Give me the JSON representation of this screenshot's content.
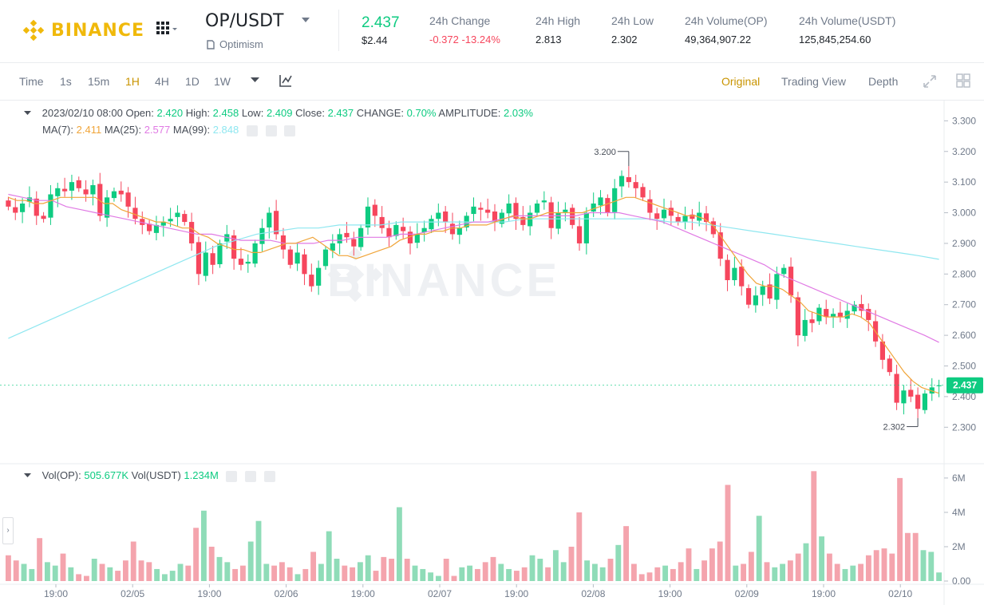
{
  "header": {
    "brand": "BINANCE",
    "pair": "OP/USDT",
    "pair_subtitle": "Optimism",
    "last_price": "2.437",
    "last_price_usd": "$2.44",
    "stats": [
      {
        "label": "24h Change",
        "value": "-0.372 -13.24%",
        "negative": true
      },
      {
        "label": "24h High",
        "value": "2.813",
        "negative": false
      },
      {
        "label": "24h Low",
        "value": "2.302",
        "negative": false
      },
      {
        "label": "24h Volume(OP)",
        "value": "49,364,907.22",
        "negative": false
      },
      {
        "label": "24h Volume(USDT)",
        "value": "125,845,254.60",
        "negative": false
      }
    ]
  },
  "toolbar": {
    "timeframes": [
      "Time",
      "1s",
      "15m",
      "1H",
      "4H",
      "1D",
      "1W"
    ],
    "active_timeframe": "1H",
    "views": [
      "Original",
      "Trading View",
      "Depth"
    ],
    "active_view": "Original"
  },
  "legend": {
    "ohlc_date": "2023/02/10 08:00",
    "open_label": "Open:",
    "open": "2.420",
    "high_label": "High:",
    "high": "2.458",
    "low_label": "Low:",
    "low": "2.409",
    "close_label": "Close:",
    "close": "2.437",
    "change_label": "CHANGE:",
    "change": "0.70%",
    "amplitude_label": "AMPLITUDE:",
    "amplitude": "2.03%",
    "ma7_label": "MA(7):",
    "ma7": "2.411",
    "ma25_label": "MA(25):",
    "ma25": "2.577",
    "ma99_label": "MA(99):",
    "ma99": "2.848",
    "vol_op_label": "Vol(OP):",
    "vol_op": "505.677K",
    "vol_usdt_label": "Vol(USDT)",
    "vol_usdt": "1.234M"
  },
  "watermark": "BINANCE",
  "colors": {
    "up": "#0ecb81",
    "down": "#f6465d",
    "accent": "#f0b90b",
    "ma7": "#f0a53a",
    "ma25": "#e07ae4",
    "ma99": "#8fe7f0"
  },
  "chart_data": {
    "type": "candlestick",
    "price_axis_ticks": [
      "3.300",
      "3.200",
      "3.100",
      "3.000",
      "2.900",
      "2.800",
      "2.700",
      "2.600",
      "2.500",
      "2.400",
      "2.300"
    ],
    "price_range": [
      2.22,
      3.34
    ],
    "current_price_label": "2.437",
    "max_marker": "3.200",
    "min_marker": "2.302",
    "volume_axis_ticks": [
      "6M",
      "4M",
      "2M",
      "0.00"
    ],
    "volume_range": [
      0,
      6.6
    ],
    "time_axis_ticks": [
      "19:00",
      "02/05",
      "19:00",
      "02/06",
      "19:00",
      "02/07",
      "19:00",
      "02/08",
      "19:00",
      "02/09",
      "19:00",
      "02/10"
    ],
    "close_path": [
      3.02,
      3.0,
      3.03,
      3.05,
      2.99,
      2.98,
      3.06,
      3.08,
      3.07,
      3.1,
      3.08,
      3.06,
      3.09,
      2.99,
      3.05,
      3.07,
      3.06,
      3.02,
      2.98,
      2.96,
      2.94,
      2.96,
      2.97,
      2.98,
      3.0,
      2.97,
      2.9,
      2.8,
      2.87,
      2.83,
      2.9,
      2.93,
      2.85,
      2.83,
      2.84,
      2.9,
      2.95,
      3.0,
      2.93,
      2.88,
      2.83,
      2.87,
      2.8,
      2.76,
      2.82,
      2.88,
      2.9,
      2.93,
      2.92,
      2.89,
      2.95,
      3.02,
      2.99,
      2.95,
      2.92,
      2.96,
      2.94,
      2.9,
      2.93,
      2.95,
      2.98,
      3.0,
      2.97,
      2.93,
      2.95,
      2.99,
      3.02,
      3.01,
      3.0,
      2.97,
      3.0,
      3.03,
      2.98,
      2.96,
      3.0,
      3.03,
      3.04,
      2.95,
      3.0,
      3.01,
      2.96,
      2.9,
      3.0,
      3.03,
      3.05,
      3.0,
      3.08,
      3.12,
      3.1,
      3.08,
      3.05,
      3.0,
      2.98,
      3.01,
      2.99,
      2.97,
      2.99,
      2.98,
      3.0,
      2.97,
      2.93,
      2.85,
      2.78,
      2.82,
      2.76,
      2.7,
      2.73,
      2.76,
      2.72,
      2.8,
      2.82,
      2.73,
      2.6,
      2.65,
      2.64,
      2.69,
      2.66,
      2.67,
      2.66,
      2.68,
      2.7,
      2.68,
      2.65,
      2.58,
      2.52,
      2.48,
      2.38,
      2.42,
      2.4,
      2.36,
      2.41,
      2.43,
      2.437
    ],
    "ma7_path": [
      3.05,
      3.04,
      3.04,
      3.03,
      3.03,
      3.04,
      3.05,
      3.05,
      3.05,
      3.05,
      3.05,
      3.03,
      3.03,
      3.01,
      3.0,
      2.99,
      2.98,
      2.97,
      2.97,
      2.96,
      2.95,
      2.95,
      2.93,
      2.92,
      2.9,
      2.89,
      2.88,
      2.88,
      2.87,
      2.87,
      2.88,
      2.89,
      2.9,
      2.9,
      2.91,
      2.92,
      2.9,
      2.88,
      2.86,
      2.86,
      2.85,
      2.86,
      2.87,
      2.88,
      2.89,
      2.91,
      2.92,
      2.93,
      2.93,
      2.94,
      2.94,
      2.95,
      2.95,
      2.96,
      2.96,
      2.96,
      2.97,
      2.98,
      2.99,
      2.98,
      2.98,
      2.99,
      3.0,
      3.0,
      3.0,
      3.0,
      3.0,
      3.01,
      3.02,
      3.03,
      3.04,
      3.05,
      3.05,
      3.04,
      3.03,
      3.02,
      3.01,
      3.0,
      2.99,
      2.99,
      2.98,
      2.96,
      2.92,
      2.88,
      2.84,
      2.8,
      2.77,
      2.76,
      2.76,
      2.75,
      2.73,
      2.71,
      2.68,
      2.67,
      2.66,
      2.66,
      2.66,
      2.67,
      2.66,
      2.64,
      2.6,
      2.56,
      2.52,
      2.48,
      2.45,
      2.43,
      2.42,
      2.411
    ],
    "ma25_path": [
      3.06,
      3.05,
      3.04,
      3.04,
      3.02,
      3.01,
      3.0,
      2.99,
      2.98,
      2.97,
      2.96,
      2.95,
      2.94,
      2.93,
      2.93,
      2.92,
      2.91,
      2.91,
      2.91,
      2.9,
      2.9,
      2.9,
      2.91,
      2.91,
      2.92,
      2.92,
      2.92,
      2.93,
      2.93,
      2.94,
      2.95,
      2.96,
      2.97,
      2.97,
      2.98,
      2.99,
      2.99,
      2.99,
      2.99,
      2.99,
      3.0,
      3.0,
      3.0,
      2.99,
      2.98,
      2.97,
      2.95,
      2.93,
      2.91,
      2.89,
      2.87,
      2.85,
      2.83,
      2.8,
      2.78,
      2.76,
      2.74,
      2.72,
      2.7,
      2.68,
      2.66,
      2.64,
      2.62,
      2.6,
      2.577
    ],
    "ma99_path": [
      2.59,
      2.62,
      2.65,
      2.68,
      2.71,
      2.74,
      2.77,
      2.8,
      2.83,
      2.86,
      2.89,
      2.91,
      2.93,
      2.94,
      2.95,
      2.95,
      2.96,
      2.96,
      2.96,
      2.97,
      2.97,
      2.97,
      2.97,
      2.97,
      2.97,
      2.98,
      2.98,
      2.98,
      2.98,
      2.98,
      2.98,
      2.98,
      2.97,
      2.97,
      2.96,
      2.95,
      2.94,
      2.93,
      2.92,
      2.91,
      2.9,
      2.89,
      2.88,
      2.87,
      2.86,
      2.848
    ],
    "volume_path": [
      1.5,
      1.2,
      1.0,
      0.7,
      2.5,
      1.1,
      0.9,
      1.6,
      0.8,
      0.4,
      0.3,
      1.3,
      1.0,
      0.8,
      0.6,
      1.2,
      2.3,
      1.2,
      1.1,
      0.7,
      0.4,
      0.6,
      1.0,
      0.9,
      3.1,
      4.1,
      2.0,
      1.4,
      1.1,
      0.7,
      0.9,
      2.3,
      3.5,
      1.0,
      0.9,
      1.1,
      0.8,
      0.4,
      0.7,
      1.7,
      1.0,
      2.9,
      1.3,
      0.9,
      0.8,
      1.1,
      1.5,
      0.6,
      1.4,
      1.3,
      4.3,
      1.3,
      0.9,
      0.7,
      0.5,
      0.3,
      1.3,
      0.3,
      0.8,
      0.9,
      0.7,
      1.1,
      1.4,
      1.0,
      0.7,
      0.6,
      0.8,
      1.5,
      1.3,
      0.8,
      1.8,
      1.1,
      2.0,
      4.0,
      1.2,
      1.0,
      0.8,
      1.3,
      2.1,
      3.2,
      1.0,
      0.4,
      0.5,
      0.8,
      0.9,
      0.7,
      1.1,
      1.9,
      0.7,
      1.2,
      1.9,
      2.3,
      5.6,
      0.9,
      1.0,
      1.7,
      3.8,
      1.1,
      0.8,
      1.0,
      1.2,
      1.6,
      2.2,
      6.4,
      2.6,
      1.6,
      1.0,
      0.7,
      0.9,
      1.0,
      1.5,
      1.8,
      1.9,
      1.6,
      6.0,
      2.8,
      2.8,
      1.8,
      1.7,
      0.5
    ],
    "xlabel": "",
    "ylabel": ""
  }
}
